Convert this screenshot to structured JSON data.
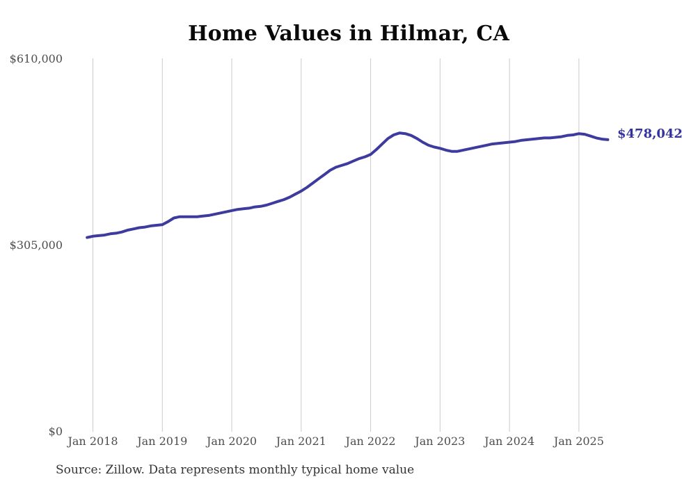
{
  "chart_data": {
    "type": "line",
    "title": "Home Values in Hilmar, CA",
    "source": "Source: Zillow. Data represents monthly typical home value",
    "xlabel": "",
    "ylabel": "",
    "ylim": [
      0,
      610000
    ],
    "grid": "vertical",
    "legend": "none",
    "x_ticks": [
      "Jan 2018",
      "Jan 2019",
      "Jan 2020",
      "Jan 2021",
      "Jan 2022",
      "Jan 2023",
      "Jan 2024",
      "Jan 2025"
    ],
    "y_ticks": [
      {
        "label": "$0",
        "value": 0
      },
      {
        "label": "$305,000",
        "value": 305000
      },
      {
        "label": "$610,000",
        "value": 610000
      }
    ],
    "end_label": {
      "text": "$478,042",
      "value": 478042
    },
    "colors": {
      "line": "#3d3b9e",
      "grid": "#cbcbcb",
      "tick_text": "#4d4d4d",
      "title_text": "#0a0a0a",
      "end_label_text": "#3333a0",
      "source_text": "#333333",
      "background": "#ffffff"
    },
    "series": [
      {
        "name": "Monthly typical home value",
        "months": [
          "2017-12",
          "2018-01",
          "2018-02",
          "2018-03",
          "2018-04",
          "2018-05",
          "2018-06",
          "2018-07",
          "2018-08",
          "2018-09",
          "2018-10",
          "2018-11",
          "2018-12",
          "2019-01",
          "2019-02",
          "2019-03",
          "2019-04",
          "2019-05",
          "2019-06",
          "2019-07",
          "2019-08",
          "2019-09",
          "2019-10",
          "2019-11",
          "2019-12",
          "2020-01",
          "2020-02",
          "2020-03",
          "2020-04",
          "2020-05",
          "2020-06",
          "2020-07",
          "2020-08",
          "2020-09",
          "2020-10",
          "2020-11",
          "2020-12",
          "2021-01",
          "2021-02",
          "2021-03",
          "2021-04",
          "2021-05",
          "2021-06",
          "2021-07",
          "2021-08",
          "2021-09",
          "2021-10",
          "2021-11",
          "2021-12",
          "2022-01",
          "2022-02",
          "2022-03",
          "2022-04",
          "2022-05",
          "2022-06",
          "2022-07",
          "2022-08",
          "2022-09",
          "2022-10",
          "2022-11",
          "2022-12",
          "2023-01",
          "2023-02",
          "2023-03",
          "2023-04",
          "2023-05",
          "2023-06",
          "2023-07",
          "2023-08",
          "2023-09",
          "2023-10",
          "2023-11",
          "2023-12",
          "2024-01",
          "2024-02",
          "2024-03",
          "2024-04",
          "2024-05",
          "2024-06",
          "2024-07",
          "2024-08",
          "2024-09",
          "2024-10",
          "2024-11",
          "2024-12",
          "2025-01",
          "2025-02",
          "2025-03",
          "2025-04",
          "2025-05",
          "2025-06"
        ],
        "values": [
          318000,
          320000,
          321000,
          322000,
          324000,
          325000,
          327000,
          330000,
          332000,
          334000,
          335000,
          337000,
          338000,
          339000,
          344000,
          350000,
          352000,
          352000,
          352000,
          352000,
          353000,
          354000,
          356000,
          358000,
          360000,
          362000,
          364000,
          365000,
          366000,
          368000,
          369000,
          371000,
          374000,
          377000,
          380000,
          384000,
          389000,
          394000,
          400000,
          407000,
          414000,
          421000,
          428000,
          433000,
          436000,
          439000,
          443000,
          447000,
          450000,
          454000,
          462000,
          471000,
          480000,
          486000,
          489000,
          488000,
          485000,
          480000,
          474000,
          469000,
          466000,
          464000,
          461000,
          459000,
          459000,
          461000,
          463000,
          465000,
          467000,
          469000,
          471000,
          472000,
          473000,
          474000,
          475000,
          477000,
          478000,
          479000,
          480000,
          481000,
          481000,
          482000,
          483000,
          485000,
          486000,
          488000,
          487000,
          484000,
          481000,
          479000,
          478042
        ]
      }
    ]
  }
}
